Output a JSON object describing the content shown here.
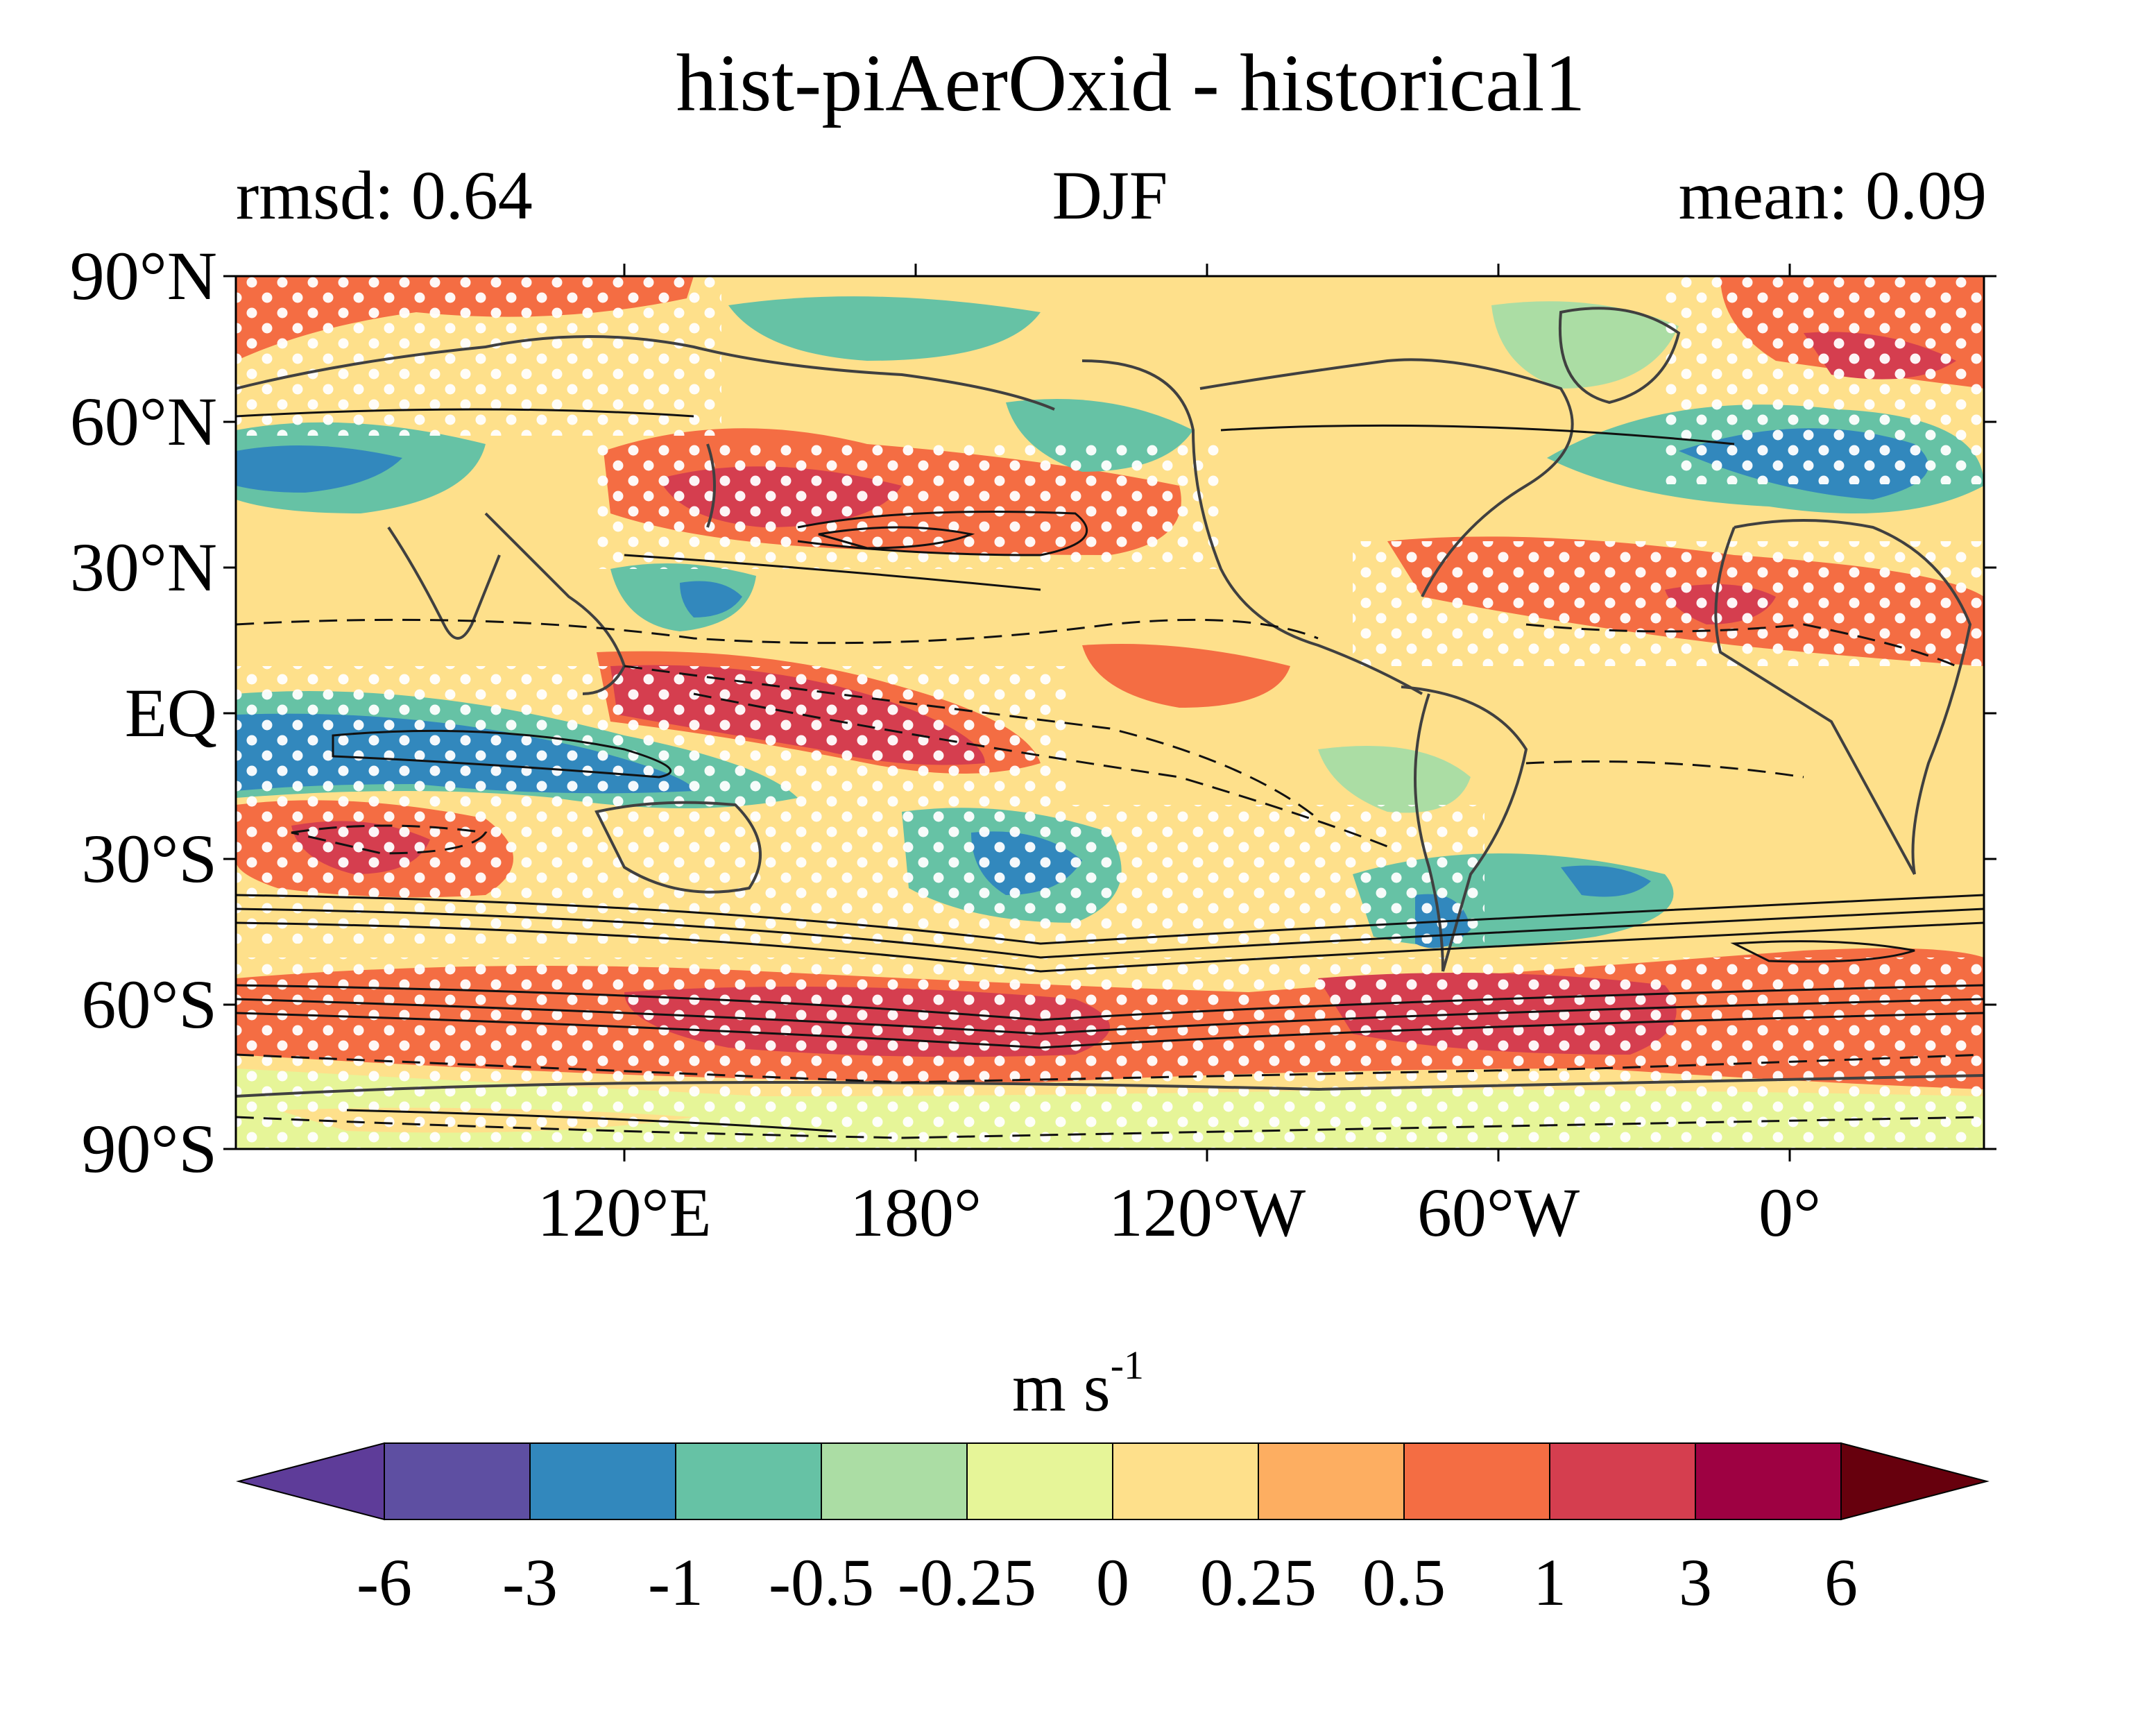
{
  "title": "hist-piAerOxid - historical1",
  "subtitle": {
    "left": "rmsd: 0.64",
    "center": "DJF",
    "right": "mean: 0.09"
  },
  "map": {
    "field": "wind speed difference (filled), climatology (contours)",
    "stippling": "white dots",
    "lat_ticks": [
      "90°N",
      "60°N",
      "30°N",
      "EQ",
      "30°S",
      "60°S",
      "90°S"
    ],
    "lon_ticks": [
      "120°E",
      "180°",
      "120°W",
      "60°W",
      "0°"
    ]
  },
  "colorbar": {
    "units_base": "m s",
    "units_exp": "-1",
    "levels": [
      "-6",
      "-3",
      "-1",
      "-0.5",
      "-0.25",
      "0",
      "0.25",
      "0.5",
      "1",
      "3",
      "6"
    ],
    "colors": [
      "#5e4fa2",
      "#3288bd",
      "#66c2a5",
      "#abdda4",
      "#e6f598",
      "#fee08b",
      "#fdae61",
      "#f46d43",
      "#d53e4f",
      "#9e0142"
    ],
    "extend_low_color": "#5e3c99",
    "extend_high_color": "#67000d"
  }
}
